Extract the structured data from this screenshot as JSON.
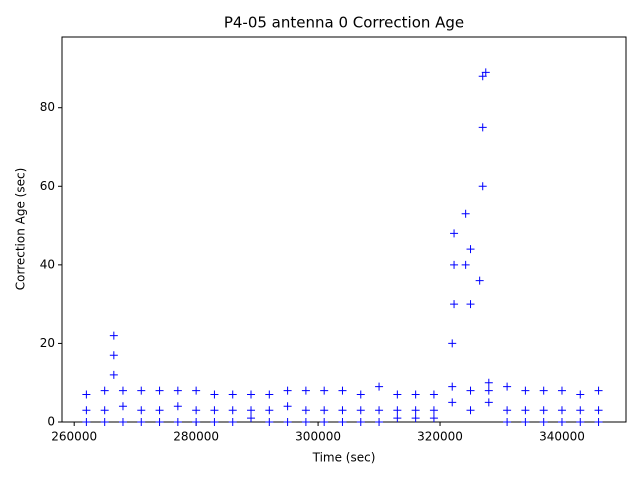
{
  "chart_data": {
    "type": "scatter",
    "title": "P4-05 antenna 0 Correction Age",
    "x_label": "Time (sec)",
    "y_label": "Correction Age (sec)",
    "marker": "+",
    "color": "#0000ff",
    "x": [
      262000,
      262000,
      262000,
      265000,
      265000,
      265000,
      268000,
      268000,
      268000,
      271000,
      271000,
      271000,
      274000,
      274000,
      274000,
      277000,
      277000,
      277000,
      280000,
      280000,
      280000,
      283000,
      283000,
      283000,
      286000,
      286000,
      286000,
      289000,
      289000,
      289000,
      292000,
      292000,
      292000,
      295000,
      295000,
      295000,
      298000,
      298000,
      298000,
      301000,
      301000,
      301000,
      304000,
      304000,
      304000,
      307000,
      307000,
      307000,
      310000,
      310000,
      310000,
      313000,
      313000,
      313000,
      316000,
      316000,
      316000,
      319000,
      319000,
      319000,
      322000,
      322000,
      322000,
      325000,
      325000,
      325000,
      328000,
      328000,
      328000,
      331000,
      331000,
      331000,
      334000,
      334000,
      334000,
      337000,
      337000,
      337000,
      340000,
      340000,
      340000,
      343000,
      343000,
      343000,
      346000,
      346000,
      346000,
      266500,
      266500,
      266500,
      322300,
      322300,
      322300,
      324200,
      324200,
      325000,
      326500,
      327000,
      327000,
      327000,
      327500
    ],
    "values": [
      0,
      3,
      7,
      0,
      3,
      8,
      0,
      4,
      8,
      0,
      3,
      8,
      0,
      3,
      8,
      0,
      4,
      8,
      0,
      3,
      8,
      0,
      3,
      7,
      0,
      3,
      7,
      1,
      3,
      7,
      0,
      3,
      7,
      0,
      4,
      8,
      0,
      3,
      8,
      0,
      3,
      8,
      0,
      3,
      8,
      0,
      3,
      7,
      0,
      3,
      9,
      1,
      3,
      7,
      1,
      3,
      7,
      1,
      3,
      7,
      5,
      9,
      20,
      3,
      8,
      30,
      5,
      8,
      10,
      0,
      3,
      9,
      0,
      3,
      8,
      0,
      3,
      8,
      0,
      3,
      8,
      0,
      3,
      7,
      0,
      3,
      8,
      12,
      17,
      22,
      30,
      40,
      48,
      40,
      53,
      44,
      36,
      60,
      75,
      88,
      89
    ],
    "xlim": [
      258000,
      350500
    ],
    "ylim": [
      0,
      98
    ],
    "xticks": [
      260000,
      280000,
      300000,
      320000,
      340000
    ],
    "yticks": [
      0,
      20,
      40,
      60,
      80
    ]
  }
}
